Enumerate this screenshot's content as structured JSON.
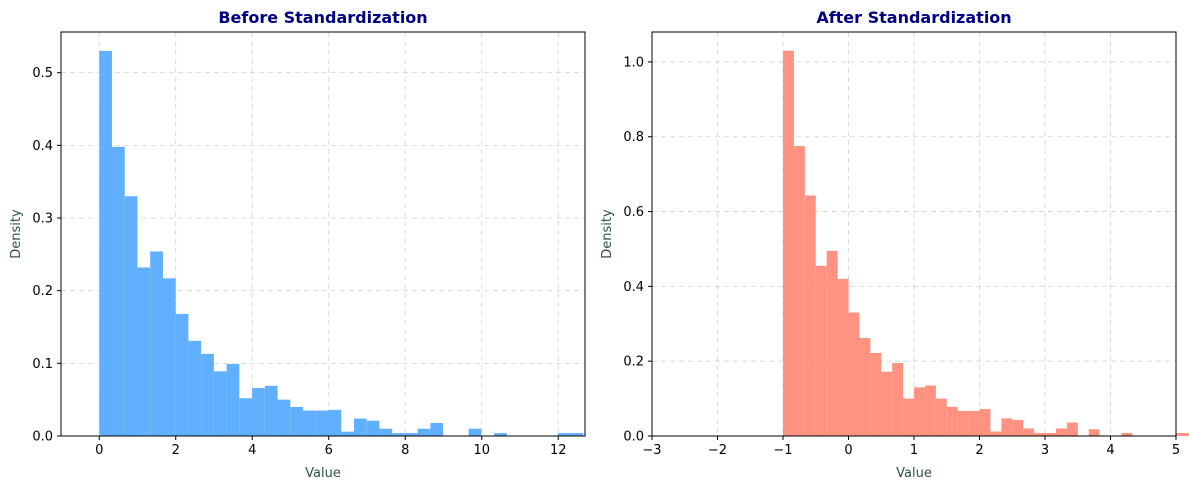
{
  "chart_data": [
    {
      "type": "bar",
      "subtype": "histogram",
      "title": "Before Standardization",
      "xlabel": "Value",
      "ylabel": "Density",
      "xlim": [
        -1,
        12.7
      ],
      "ylim": [
        0,
        0.556
      ],
      "xticks": [
        0,
        2,
        4,
        6,
        8,
        10,
        12
      ],
      "yticks": [
        0.0,
        0.1,
        0.2,
        0.3,
        0.4,
        0.5
      ],
      "ytick_labels": [
        "0.0",
        "0.1",
        "0.2",
        "0.3",
        "0.4",
        "0.5"
      ],
      "grid": true,
      "color": "#61b0ff",
      "bin_start": 0,
      "bin_width": 0.333,
      "values": [
        0.53,
        0.398,
        0.33,
        0.232,
        0.254,
        0.217,
        0.168,
        0.131,
        0.113,
        0.089,
        0.099,
        0.052,
        0.066,
        0.069,
        0.05,
        0.04,
        0.035,
        0.035,
        0.036,
        0.006,
        0.024,
        0.021,
        0.01,
        0.004,
        0.004,
        0.01,
        0.018,
        0.0,
        0.0,
        0.01,
        0.0,
        0.004,
        0.0,
        0.0,
        0.0,
        0.0,
        0.004,
        0.004,
        0.0,
        0.0
      ]
    },
    {
      "type": "bar",
      "subtype": "histogram",
      "title": "After Standardization",
      "xlabel": "Value",
      "ylabel": "Density",
      "xlim": [
        -3,
        5
      ],
      "ylim": [
        0,
        1.08
      ],
      "xticks": [
        -3,
        -2,
        -1,
        0,
        1,
        2,
        3,
        4,
        5
      ],
      "xtick_labels": [
        "−3",
        "−2",
        "−1",
        "0",
        "1",
        "2",
        "3",
        "4",
        "5"
      ],
      "yticks": [
        0.0,
        0.2,
        0.4,
        0.6,
        0.8,
        1.0
      ],
      "ytick_labels": [
        "0.0",
        "0.2",
        "0.4",
        "0.6",
        "0.8",
        "1.0"
      ],
      "grid": true,
      "color": "#ff9280",
      "bin_start": -1,
      "bin_width": 0.1667,
      "values": [
        1.03,
        0.775,
        0.643,
        0.455,
        0.495,
        0.42,
        0.33,
        0.262,
        0.222,
        0.172,
        0.195,
        0.1,
        0.13,
        0.135,
        0.1,
        0.078,
        0.067,
        0.067,
        0.072,
        0.012,
        0.047,
        0.043,
        0.02,
        0.008,
        0.008,
        0.02,
        0.036,
        0.0,
        0.018,
        0.0,
        0.0,
        0.008,
        0.0,
        0.0,
        0.0,
        0.0,
        0.008,
        0.008
      ]
    }
  ]
}
